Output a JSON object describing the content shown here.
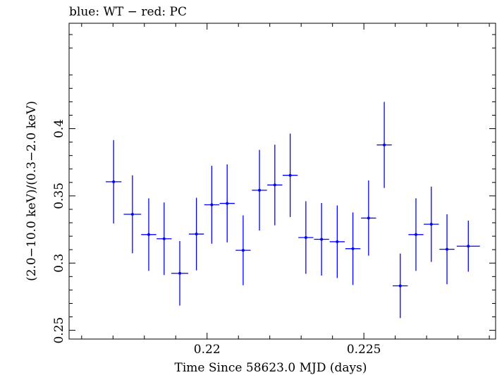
{
  "chart_data": {
    "type": "scatter",
    "title": "blue: WT − red: PC",
    "xlabel": "Time Since 58623.0 MJD (days)",
    "ylabel": "(2.0−10.0 keV)/(0.3−2.0 keV)",
    "xlim": [
      0.2156,
      0.2292
    ],
    "ylim": [
      0.2435,
      0.4784
    ],
    "x_ticks": [
      {
        "value": 0.22,
        "label": "0.22"
      },
      {
        "value": 0.225,
        "label": "0.225"
      }
    ],
    "y_ticks": [
      {
        "value": 0.25,
        "label": "0.25"
      },
      {
        "value": 0.3,
        "label": "0.3"
      },
      {
        "value": 0.35,
        "label": "0.35"
      },
      {
        "value": 0.4,
        "label": "0.4"
      }
    ],
    "grid": false,
    "series": [
      {
        "color": "#0000ff",
        "points": [
          {
            "x": 0.21702,
            "xerr": 0.00025,
            "y": 0.3605,
            "yerr": 0.031
          },
          {
            "x": 0.21762,
            "xerr": 0.00028,
            "y": 0.3363,
            "yerr": 0.029
          },
          {
            "x": 0.21814,
            "xerr": 0.00024,
            "y": 0.3212,
            "yerr": 0.027
          },
          {
            "x": 0.21863,
            "xerr": 0.00024,
            "y": 0.3181,
            "yerr": 0.027
          },
          {
            "x": 0.21913,
            "xerr": 0.00027,
            "y": 0.2924,
            "yerr": 0.024
          },
          {
            "x": 0.21966,
            "xerr": 0.00024,
            "y": 0.3216,
            "yerr": 0.027
          },
          {
            "x": 0.22015,
            "xerr": 0.00024,
            "y": 0.3434,
            "yerr": 0.029
          },
          {
            "x": 0.22064,
            "xerr": 0.00024,
            "y": 0.3444,
            "yerr": 0.029
          },
          {
            "x": 0.22115,
            "xerr": 0.00024,
            "y": 0.3095,
            "yerr": 0.026
          },
          {
            "x": 0.22167,
            "xerr": 0.00024,
            "y": 0.3542,
            "yerr": 0.03
          },
          {
            "x": 0.22216,
            "xerr": 0.00024,
            "y": 0.3581,
            "yerr": 0.03
          },
          {
            "x": 0.22265,
            "xerr": 0.00024,
            "y": 0.3653,
            "yerr": 0.031
          },
          {
            "x": 0.22315,
            "xerr": 0.00024,
            "y": 0.319,
            "yerr": 0.027
          },
          {
            "x": 0.22365,
            "xerr": 0.00024,
            "y": 0.3177,
            "yerr": 0.027
          },
          {
            "x": 0.22415,
            "xerr": 0.00024,
            "y": 0.3159,
            "yerr": 0.027
          },
          {
            "x": 0.22465,
            "xerr": 0.00024,
            "y": 0.3107,
            "yerr": 0.027
          },
          {
            "x": 0.22515,
            "xerr": 0.00024,
            "y": 0.3335,
            "yerr": 0.028
          },
          {
            "x": 0.22565,
            "xerr": 0.00024,
            "y": 0.3879,
            "yerr": 0.032
          },
          {
            "x": 0.22616,
            "xerr": 0.00024,
            "y": 0.2831,
            "yerr": 0.024
          },
          {
            "x": 0.22666,
            "xerr": 0.00024,
            "y": 0.3212,
            "yerr": 0.027
          },
          {
            "x": 0.22715,
            "xerr": 0.00024,
            "y": 0.3289,
            "yerr": 0.028
          },
          {
            "x": 0.22765,
            "xerr": 0.00024,
            "y": 0.3103,
            "yerr": 0.026
          },
          {
            "x": 0.22833,
            "xerr": 0.00037,
            "y": 0.3126,
            "yerr": 0.019
          }
        ]
      }
    ]
  }
}
